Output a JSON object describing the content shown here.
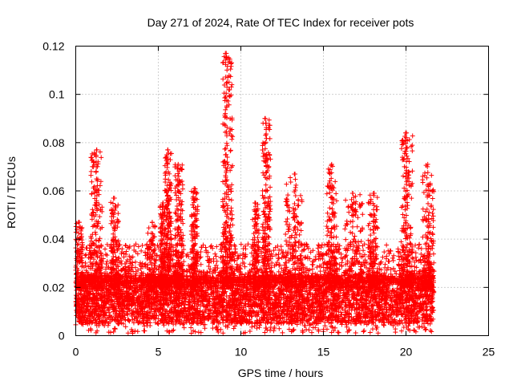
{
  "chart_data": {
    "type": "scatter",
    "title": "Day 271 of 2024, Rate Of TEC Index for receiver pots",
    "xlabel": "GPS time / hours",
    "ylabel": "ROTI / TECUs",
    "xlim": [
      0,
      25
    ],
    "ylim": [
      0,
      0.12
    ],
    "xticks": [
      0,
      5,
      10,
      15,
      20,
      25
    ],
    "xtick_labels": [
      "0",
      "5",
      "10",
      "15",
      "20",
      "25"
    ],
    "yticks": [
      0,
      0.02,
      0.04,
      0.06,
      0.08,
      0.1,
      0.12
    ],
    "ytick_labels": [
      "0",
      "0.02",
      "0.04",
      "0.06",
      "0.08",
      "0.1",
      "0.12"
    ],
    "grid": true,
    "marker": "+",
    "marker_color": "#ff0000",
    "data_x_range": [
      0,
      21.7
    ],
    "baseline_band": [
      0.005,
      0.025
    ],
    "clusters": [
      {
        "x": [
          0.0,
          0.4
        ],
        "y_max": 0.047
      },
      {
        "x": [
          0.9,
          1.6
        ],
        "y_max": 0.077
      },
      {
        "x": [
          2.1,
          2.6
        ],
        "y_max": 0.057
      },
      {
        "x": [
          4.3,
          4.9
        ],
        "y_max": 0.047
      },
      {
        "x": [
          5.1,
          5.4
        ],
        "y_max": 0.055
      },
      {
        "x": [
          5.4,
          5.8
        ],
        "y_max": 0.077
      },
      {
        "x": [
          6.0,
          6.5
        ],
        "y_max": 0.071
      },
      {
        "x": [
          7.0,
          7.4
        ],
        "y_max": 0.061
      },
      {
        "x": [
          8.9,
          9.5
        ],
        "y_max": 0.117
      },
      {
        "x": [
          10.7,
          11.1
        ],
        "y_max": 0.055
      },
      {
        "x": [
          11.3,
          11.8
        ],
        "y_max": 0.09
      },
      {
        "x": [
          12.7,
          13.7
        ],
        "y_max": 0.067
      },
      {
        "x": [
          15.2,
          15.8
        ],
        "y_max": 0.071
      },
      {
        "x": [
          16.3,
          17.4
        ],
        "y_max": 0.059
      },
      {
        "x": [
          17.7,
          18.3
        ],
        "y_max": 0.059
      },
      {
        "x": [
          19.7,
          20.4
        ],
        "y_max": 0.084
      },
      {
        "x": [
          21.0,
          21.7
        ],
        "y_max": 0.071
      }
    ]
  }
}
